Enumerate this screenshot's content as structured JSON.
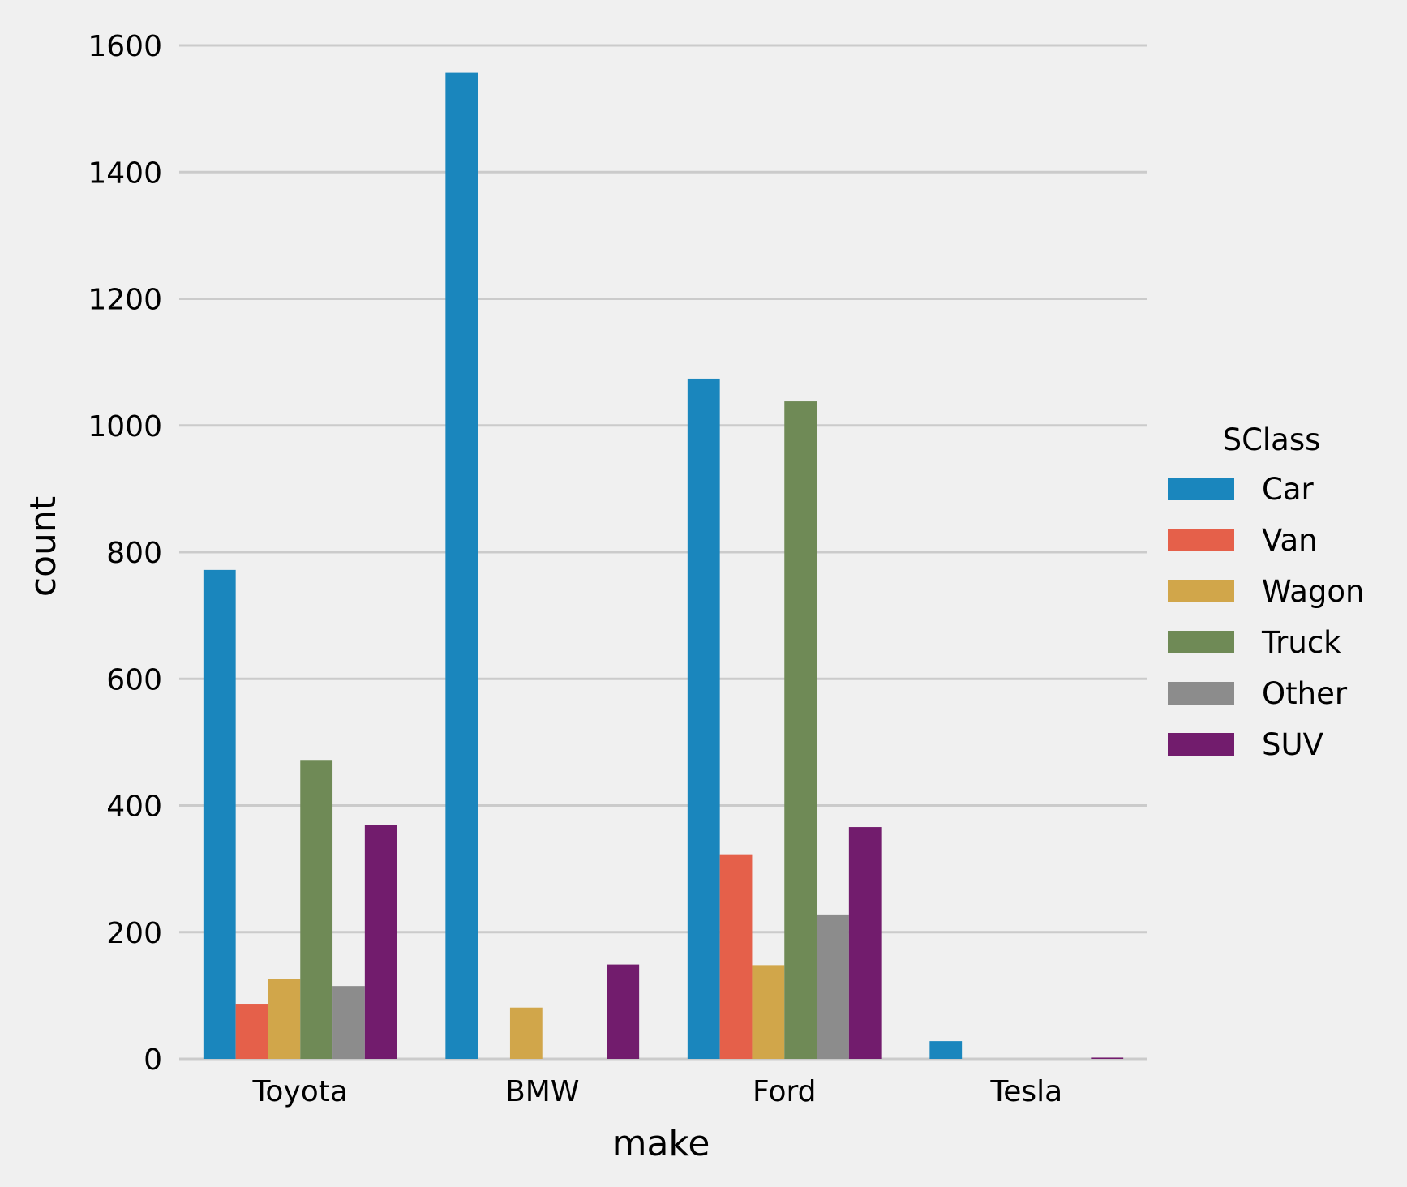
{
  "chart_data": {
    "type": "bar",
    "title": "",
    "xlabel": "make",
    "ylabel": "count",
    "categories": [
      "Toyota",
      "BMW",
      "Ford",
      "Tesla"
    ],
    "ylim": [
      0,
      1600
    ],
    "yticks": [
      0,
      200,
      400,
      600,
      800,
      1000,
      1200,
      1400,
      1600
    ],
    "grid": true,
    "legend": {
      "title": "SClass",
      "placement": "right"
    },
    "series": [
      {
        "name": "Car",
        "color": "#1a86bd",
        "values": [
          772,
          1557,
          1074,
          28
        ]
      },
      {
        "name": "Van",
        "color": "#e5604a",
        "values": [
          87,
          0,
          323,
          0
        ]
      },
      {
        "name": "Wagon",
        "color": "#d1a64a",
        "values": [
          126,
          81,
          148,
          0
        ]
      },
      {
        "name": "Truck",
        "color": "#6f8a56",
        "values": [
          472,
          0,
          1038,
          0
        ]
      },
      {
        "name": "Other",
        "color": "#8c8c8c",
        "values": [
          115,
          0,
          228,
          0
        ]
      },
      {
        "name": "SUV",
        "color": "#721c6d",
        "values": [
          369,
          149,
          366,
          2
        ]
      }
    ]
  }
}
